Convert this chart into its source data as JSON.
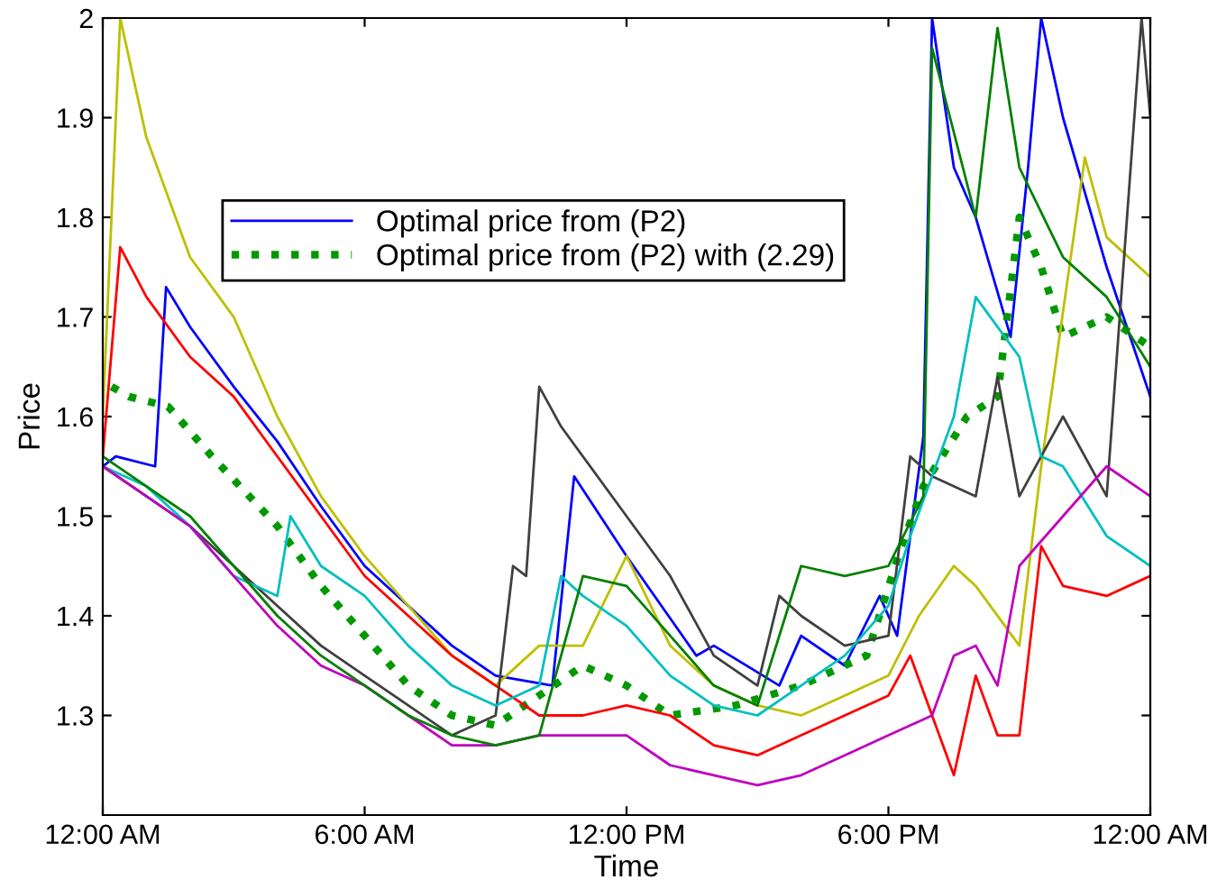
{
  "chart_data": {
    "type": "line",
    "xlabel": "Time",
    "ylabel": "Price",
    "xlim": [
      0,
      24
    ],
    "xticks": [
      {
        "value": 0,
        "label": "12:00 AM"
      },
      {
        "value": 6,
        "label": "6:00 AM"
      },
      {
        "value": 12,
        "label": "12:00 PM"
      },
      {
        "value": 18,
        "label": "6:00 PM"
      },
      {
        "value": 24,
        "label": "12:00 AM"
      }
    ],
    "ylim": [
      1.2,
      2
    ],
    "yticks": [
      1.3,
      1.4,
      1.5,
      1.6,
      1.7,
      1.8,
      1.9,
      2
    ],
    "grid": false,
    "legend": "top left",
    "marker": "none",
    "series": [
      {
        "name": "Optimal price from (P2)",
        "color": "#0000ff",
        "line_style": "solid",
        "x": [
          0,
          0.3,
          1.2,
          1.45,
          2,
          3,
          4,
          5,
          6,
          7,
          8,
          9,
          10.3,
          10.8,
          12,
          13.6,
          14,
          15.5,
          16,
          17,
          17.8,
          18.2,
          18.8,
          19,
          19.5,
          20,
          20.8,
          21.2,
          21.5,
          22,
          23,
          24
        ],
        "values": [
          1.55,
          1.56,
          1.55,
          1.73,
          1.69,
          1.63,
          1.575,
          1.51,
          1.45,
          1.41,
          1.37,
          1.34,
          1.33,
          1.54,
          1.46,
          1.36,
          1.37,
          1.33,
          1.38,
          1.35,
          1.42,
          1.38,
          1.58,
          2.0,
          1.85,
          1.8,
          1.68,
          1.85,
          2.0,
          1.9,
          1.75,
          1.62
        ]
      },
      {
        "name": "Optimal price from (P2) with (2.29)",
        "color": "#009900",
        "line_style": "dotted",
        "x": [
          0.2,
          0.6,
          1.5,
          2.5,
          4,
          5,
          6,
          7,
          8,
          9,
          10,
          11,
          12,
          13,
          14.5,
          16,
          17.5,
          18.3,
          18.8,
          19.8,
          20.5,
          21,
          21.5,
          22,
          23,
          24
        ],
        "values": [
          1.63,
          1.62,
          1.61,
          1.56,
          1.49,
          1.43,
          1.38,
          1.33,
          1.3,
          1.29,
          1.32,
          1.35,
          1.33,
          1.3,
          1.31,
          1.33,
          1.36,
          1.47,
          1.53,
          1.6,
          1.62,
          1.8,
          1.75,
          1.68,
          1.7,
          1.67
        ]
      },
      {
        "color": "#bfbf00",
        "line_style": "solid",
        "x": [
          0,
          0.4,
          1,
          2,
          3,
          4,
          5,
          6,
          7,
          8,
          9,
          10,
          11,
          12,
          13,
          14,
          15,
          16,
          17,
          18,
          18.7,
          19.5,
          20,
          21,
          21.5,
          22.5,
          23,
          24
        ],
        "values": [
          1.6,
          2.0,
          1.88,
          1.76,
          1.7,
          1.6,
          1.52,
          1.46,
          1.41,
          1.36,
          1.33,
          1.37,
          1.37,
          1.46,
          1.37,
          1.33,
          1.31,
          1.3,
          1.32,
          1.34,
          1.4,
          1.45,
          1.43,
          1.37,
          1.55,
          1.86,
          1.78,
          1.74
        ]
      },
      {
        "color": "#ff0000",
        "line_style": "solid",
        "x": [
          0,
          0.4,
          1,
          2,
          3,
          4,
          5,
          6,
          7,
          8,
          9,
          10,
          11,
          12,
          13,
          14,
          15,
          16,
          17,
          18,
          18.5,
          19,
          19.5,
          20,
          20.5,
          21,
          21.5,
          22,
          23,
          24
        ],
        "values": [
          1.56,
          1.77,
          1.72,
          1.66,
          1.62,
          1.56,
          1.5,
          1.44,
          1.4,
          1.36,
          1.33,
          1.3,
          1.3,
          1.31,
          1.3,
          1.27,
          1.26,
          1.28,
          1.3,
          1.32,
          1.36,
          1.3,
          1.24,
          1.34,
          1.28,
          1.28,
          1.47,
          1.43,
          1.42,
          1.44
        ]
      },
      {
        "color": "#404040",
        "line_style": "solid",
        "x": [
          0,
          1,
          2,
          3,
          4,
          5,
          6,
          7,
          8,
          9,
          9.4,
          9.7,
          10,
          10.5,
          11,
          12,
          13,
          14,
          15,
          15.5,
          16,
          17,
          18,
          18.5,
          19,
          20,
          20.5,
          21,
          22,
          23,
          23.8,
          24
        ],
        "values": [
          1.55,
          1.52,
          1.49,
          1.45,
          1.41,
          1.37,
          1.34,
          1.31,
          1.28,
          1.3,
          1.45,
          1.44,
          1.63,
          1.59,
          1.56,
          1.5,
          1.44,
          1.36,
          1.33,
          1.42,
          1.4,
          1.37,
          1.38,
          1.56,
          1.54,
          1.52,
          1.64,
          1.52,
          1.6,
          1.52,
          2.0,
          1.9
        ]
      },
      {
        "color": "#00bfbf",
        "line_style": "solid",
        "x": [
          0,
          1,
          2,
          3,
          4,
          4.3,
          5,
          6,
          7,
          8,
          9,
          10,
          10.5,
          11,
          12,
          13,
          14,
          15,
          16,
          17,
          18,
          18.5,
          19.5,
          20,
          21,
          21.5,
          22,
          23,
          24
        ],
        "values": [
          1.55,
          1.53,
          1.49,
          1.44,
          1.42,
          1.5,
          1.45,
          1.42,
          1.37,
          1.33,
          1.31,
          1.33,
          1.44,
          1.42,
          1.39,
          1.34,
          1.31,
          1.3,
          1.33,
          1.36,
          1.41,
          1.48,
          1.6,
          1.72,
          1.66,
          1.56,
          1.55,
          1.48,
          1.45
        ]
      },
      {
        "color": "#bf00bf",
        "line_style": "solid",
        "x": [
          0,
          1,
          2,
          3,
          4,
          5,
          6,
          7,
          8,
          9,
          10,
          11,
          12,
          13,
          14,
          15,
          16,
          17,
          18,
          19,
          19.5,
          20,
          20.5,
          21,
          22,
          23,
          24
        ],
        "values": [
          1.55,
          1.52,
          1.49,
          1.44,
          1.39,
          1.35,
          1.33,
          1.3,
          1.27,
          1.27,
          1.28,
          1.28,
          1.28,
          1.25,
          1.24,
          1.23,
          1.24,
          1.26,
          1.28,
          1.3,
          1.36,
          1.37,
          1.33,
          1.45,
          1.5,
          1.55,
          1.52
        ]
      },
      {
        "color": "#008000",
        "line_style": "solid",
        "x": [
          0,
          1,
          2,
          3,
          4,
          5,
          6,
          7,
          8,
          9,
          10,
          11,
          12,
          13,
          14,
          15,
          16,
          17,
          18,
          18.8,
          19,
          20,
          20.5,
          21,
          22,
          23,
          24
        ],
        "values": [
          1.56,
          1.53,
          1.5,
          1.45,
          1.4,
          1.36,
          1.33,
          1.3,
          1.28,
          1.27,
          1.28,
          1.44,
          1.43,
          1.38,
          1.33,
          1.31,
          1.45,
          1.44,
          1.45,
          1.52,
          1.97,
          1.8,
          1.99,
          1.85,
          1.76,
          1.72,
          1.65
        ]
      }
    ]
  }
}
